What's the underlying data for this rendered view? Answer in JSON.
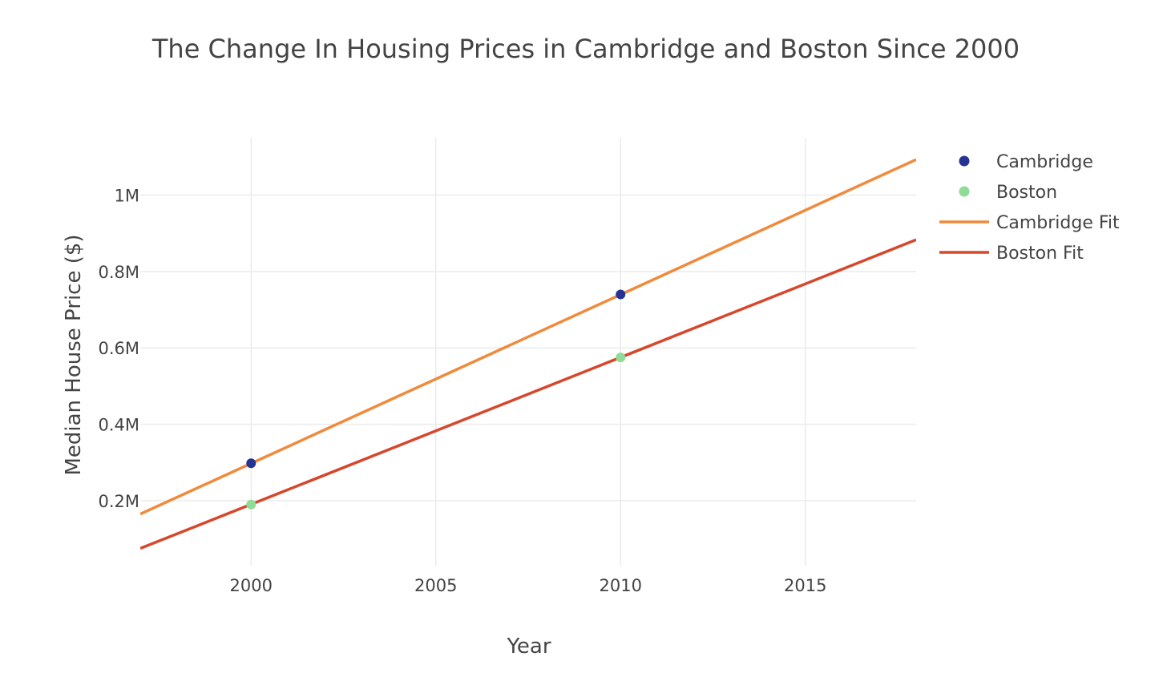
{
  "chart_data": {
    "type": "scatter",
    "title": "The Change In Housing Prices in Cambridge and Boston Since 2000",
    "xlabel": "Year",
    "ylabel": "Median House Price ($)",
    "xlim": [
      1997,
      2018
    ],
    "ylim": [
      30000,
      1150000
    ],
    "x_ticks": [
      {
        "value": 2000,
        "label": "2000"
      },
      {
        "value": 2005,
        "label": "2005"
      },
      {
        "value": 2010,
        "label": "2010"
      },
      {
        "value": 2015,
        "label": "2015"
      }
    ],
    "y_ticks": [
      {
        "value": 200000,
        "label": "0.2M"
      },
      {
        "value": 400000,
        "label": "0.4M"
      },
      {
        "value": 600000,
        "label": "0.6M"
      },
      {
        "value": 800000,
        "label": "0.8M"
      },
      {
        "value": 1000000,
        "label": "1M"
      }
    ],
    "grid": true,
    "legend_position": "top-right",
    "series": [
      {
        "name": "Cambridge",
        "kind": "markers",
        "color": "#253494",
        "points": [
          {
            "x": 2000,
            "y": 298000
          },
          {
            "x": 2010,
            "y": 740000
          }
        ]
      },
      {
        "name": "Boston",
        "kind": "markers",
        "color": "#8fdc97",
        "points": [
          {
            "x": 2000,
            "y": 190000
          },
          {
            "x": 2010,
            "y": 575000
          }
        ]
      },
      {
        "name": "Cambridge Fit",
        "kind": "line",
        "color": "#f08a3c",
        "points": [
          {
            "x": 1997,
            "y": 165000
          },
          {
            "x": 2018,
            "y": 1093000
          }
        ]
      },
      {
        "name": "Boston Fit",
        "kind": "line",
        "color": "#d6472b",
        "points": [
          {
            "x": 1997,
            "y": 75000
          },
          {
            "x": 2018,
            "y": 883000
          }
        ]
      }
    ]
  }
}
